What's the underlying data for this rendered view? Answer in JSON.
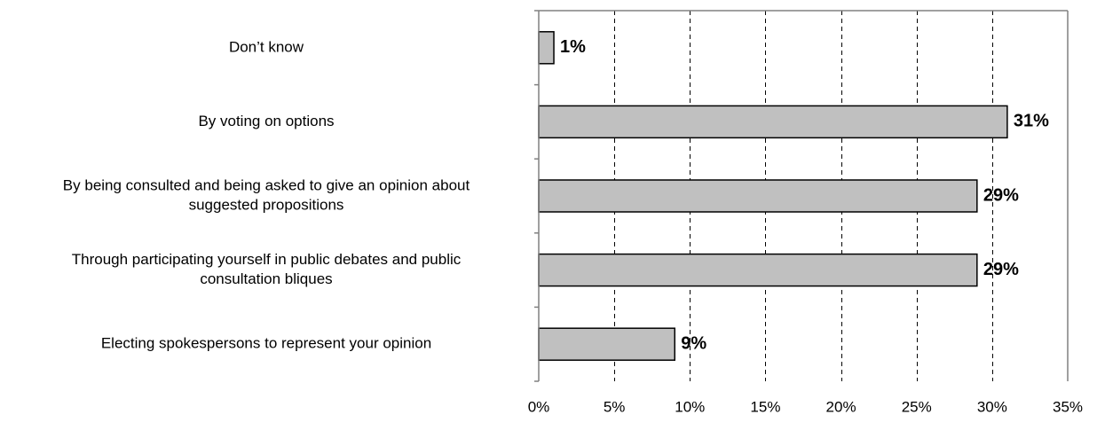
{
  "chart_data": {
    "type": "bar",
    "orientation": "horizontal",
    "categories": [
      [
        "Don’t know"
      ],
      [
        "By voting on options"
      ],
      [
        "By being consulted and being asked to give an opinion about",
        "suggested propositions"
      ],
      [
        "Through participating yourself in public debates and public",
        "consultation bliques"
      ],
      [
        "Electing spokespersons to represent your opinion"
      ]
    ],
    "values": [
      1,
      31,
      29,
      29,
      9
    ],
    "value_labels": [
      "1%",
      "31%",
      "29%",
      "29%",
      "9%"
    ],
    "xlim": [
      0,
      35
    ],
    "x_ticks": [
      0,
      5,
      10,
      15,
      20,
      25,
      30,
      35
    ],
    "x_tick_labels": [
      "0%",
      "5%",
      "10%",
      "15%",
      "20%",
      "25%",
      "30%",
      "35%"
    ],
    "grid": "vertical dashed",
    "title": "",
    "xlabel": "",
    "ylabel": "",
    "colors": {
      "bar_fill": "#c0c0c0",
      "bar_stroke": "#000000",
      "grid": "#000000",
      "frame": "#808080"
    }
  }
}
